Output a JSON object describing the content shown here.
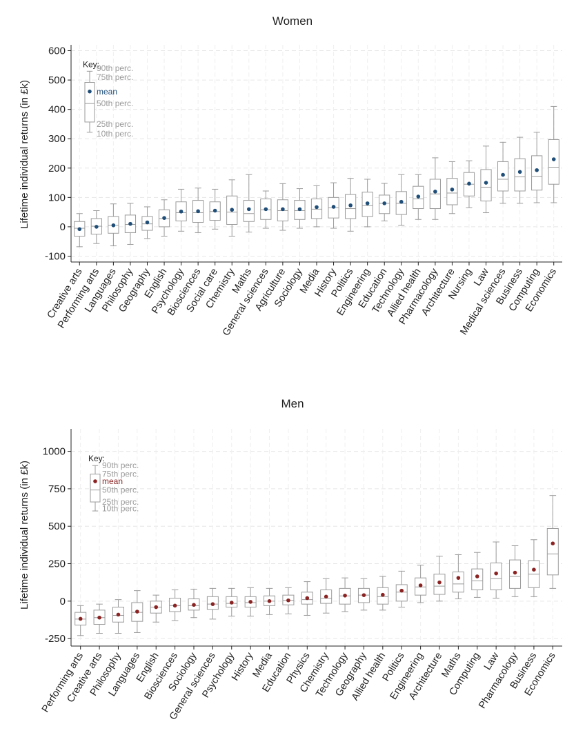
{
  "chart_data": [
    {
      "type": "box",
      "title": "Women",
      "ylabel": "Lifetime individual returns (in £k)",
      "xlabel": "",
      "ylim": [
        -120,
        620
      ],
      "yticks": [
        -100,
        0,
        100,
        200,
        300,
        400,
        500,
        600
      ],
      "grid": true,
      "mean_color": "#1f4e79",
      "key": {
        "title": "Key:",
        "labels": [
          "90th perc.",
          "75th perc.",
          "mean",
          "50th perc.",
          "25th perc.",
          "10th perc."
        ],
        "stats": {
          "p10": 322,
          "p25": 357,
          "median": 420,
          "p75": 492,
          "p90": 530,
          "mean": 461
        },
        "label_values": [
          540,
          510,
          460,
          420,
          350,
          317
        ]
      },
      "categories": [
        "Creative arts",
        "Performing arts",
        "Languages",
        "Philosophy",
        "Geography",
        "English",
        "Psychology",
        "Biosciences",
        "Social care",
        "Chemistry",
        "Maths",
        "General sciences",
        "Agriculture",
        "Sociology",
        "Media",
        "History",
        "Politics",
        "Engineering",
        "Education",
        "Technology",
        "Allied health",
        "Pharmacology",
        "Architecture",
        "Nursing",
        "Law",
        "Medical sciences",
        "Business",
        "Computing",
        "Economics"
      ],
      "series": [
        {
          "p10": -68,
          "p25": -32,
          "median": -5,
          "p75": 18,
          "p90": 45,
          "mean": -8
        },
        {
          "p10": -57,
          "p25": -25,
          "median": 2,
          "p75": 28,
          "p90": 55,
          "mean": 0
        },
        {
          "p10": -65,
          "p25": -22,
          "median": 5,
          "p75": 35,
          "p90": 78,
          "mean": 5
        },
        {
          "p10": -60,
          "p25": -20,
          "median": 8,
          "p75": 40,
          "p90": 80,
          "mean": 10
        },
        {
          "p10": -40,
          "p25": -12,
          "median": 10,
          "p75": 35,
          "p90": 68,
          "mean": 15
        },
        {
          "p10": -32,
          "p25": 0,
          "median": 28,
          "p75": 58,
          "p90": 92,
          "mean": 30
        },
        {
          "p10": -15,
          "p25": 20,
          "median": 48,
          "p75": 85,
          "p90": 128,
          "mean": 52
        },
        {
          "p10": -20,
          "p25": 15,
          "median": 48,
          "p75": 90,
          "p90": 132,
          "mean": 53
        },
        {
          "p10": -8,
          "p25": 22,
          "median": 52,
          "p75": 85,
          "p90": 128,
          "mean": 55
        },
        {
          "p10": -32,
          "p25": 8,
          "median": 50,
          "p75": 105,
          "p90": 160,
          "mean": 58
        },
        {
          "p10": -18,
          "p25": 18,
          "median": 45,
          "p75": 90,
          "p90": 178,
          "mean": 60
        },
        {
          "p10": -5,
          "p25": 25,
          "median": 58,
          "p75": 95,
          "p90": 122,
          "mean": 60
        },
        {
          "p10": -12,
          "p25": 20,
          "median": 55,
          "p75": 92,
          "p90": 147,
          "mean": 60
        },
        {
          "p10": -5,
          "p25": 25,
          "median": 55,
          "p75": 90,
          "p90": 130,
          "mean": 60
        },
        {
          "p10": 0,
          "p25": 28,
          "median": 60,
          "p75": 95,
          "p90": 140,
          "mean": 67
        },
        {
          "p10": -5,
          "p25": 30,
          "median": 65,
          "p75": 100,
          "p90": 150,
          "mean": 68
        },
        {
          "p10": -15,
          "p25": 28,
          "median": 62,
          "p75": 110,
          "p90": 165,
          "mean": 73
        },
        {
          "p10": 0,
          "p25": 35,
          "median": 72,
          "p75": 118,
          "p90": 162,
          "mean": 80
        },
        {
          "p10": 20,
          "p25": 45,
          "median": 80,
          "p75": 108,
          "p90": 148,
          "mean": 80
        },
        {
          "p10": 5,
          "p25": 42,
          "median": 80,
          "p75": 120,
          "p90": 178,
          "mean": 85
        },
        {
          "p10": 25,
          "p25": 62,
          "median": 95,
          "p75": 138,
          "p90": 178,
          "mean": 103
        },
        {
          "p10": 25,
          "p25": 62,
          "median": 112,
          "p75": 162,
          "p90": 235,
          "mean": 120
        },
        {
          "p10": 45,
          "p25": 75,
          "median": 115,
          "p75": 165,
          "p90": 222,
          "mean": 127
        },
        {
          "p10": 65,
          "p25": 105,
          "median": 145,
          "p75": 185,
          "p90": 225,
          "mean": 147
        },
        {
          "p10": 48,
          "p25": 88,
          "median": 135,
          "p75": 195,
          "p90": 275,
          "mean": 150
        },
        {
          "p10": 80,
          "p25": 122,
          "median": 162,
          "p75": 222,
          "p90": 288,
          "mean": 177
        },
        {
          "p10": 80,
          "p25": 122,
          "median": 170,
          "p75": 232,
          "p90": 305,
          "mean": 187
        },
        {
          "p10": 82,
          "p25": 125,
          "median": 172,
          "p75": 242,
          "p90": 322,
          "mean": 193
        },
        {
          "p10": 82,
          "p25": 145,
          "median": 203,
          "p75": 297,
          "p90": 410,
          "mean": 230
        }
      ]
    },
    {
      "type": "box",
      "title": "Men",
      "ylabel": "Lifetime individual returns (in £k)",
      "xlabel": "",
      "ylim": [
        -300,
        1150
      ],
      "yticks": [
        -250,
        0,
        250,
        500,
        750,
        1000
      ],
      "grid": true,
      "mean_color": "#8b2323",
      "key": {
        "title": "Key:",
        "labels": [
          "90th perc.",
          "75th perc.",
          "mean",
          "50th perc.",
          "25th perc.",
          "10th perc."
        ],
        "stats": {
          "p10": 602,
          "p25": 662,
          "median": 742,
          "p75": 848,
          "p90": 905,
          "mean": 800
        },
        "label_values": [
          905,
          848,
          800,
          742,
          662,
          618
        ]
      },
      "categories": [
        "Performing arts",
        "Creative arts",
        "Philosophy",
        "Languages",
        "English",
        "Biosciences",
        "Sociology",
        "General sciences",
        "Psychology",
        "History",
        "Media",
        "Education",
        "Physics",
        "Chemistry",
        "Technology",
        "Geography",
        "Allied health",
        "Politics",
        "Engineering",
        "Architecture",
        "Maths",
        "Computing",
        "Law",
        "Pharmacology",
        "Business",
        "Economics"
      ],
      "series": [
        {
          "p10": -230,
          "p25": -160,
          "median": -120,
          "p75": -75,
          "p90": -30,
          "mean": -118
        },
        {
          "p10": -215,
          "p25": -155,
          "median": -110,
          "p75": -60,
          "p90": -20,
          "mean": -110
        },
        {
          "p10": -215,
          "p25": -140,
          "median": -95,
          "p75": -40,
          "p90": 10,
          "mean": -90
        },
        {
          "p10": -210,
          "p25": -135,
          "median": -75,
          "p75": -10,
          "p90": 70,
          "mean": -70
        },
        {
          "p10": -140,
          "p25": -80,
          "median": -40,
          "p75": 0,
          "p90": 40,
          "mean": -40
        },
        {
          "p10": -130,
          "p25": -70,
          "median": -30,
          "p75": 20,
          "p90": 75,
          "mean": -30
        },
        {
          "p10": -110,
          "p25": -60,
          "median": -30,
          "p75": 15,
          "p90": 80,
          "mean": -25
        },
        {
          "p10": -120,
          "p25": -55,
          "median": -20,
          "p75": 30,
          "p90": 85,
          "mean": -20
        },
        {
          "p10": -100,
          "p25": -40,
          "median": -15,
          "p75": 30,
          "p90": 85,
          "mean": -10
        },
        {
          "p10": -100,
          "p25": -40,
          "median": -10,
          "p75": 30,
          "p90": 90,
          "mean": -5
        },
        {
          "p10": -90,
          "p25": -30,
          "median": 0,
          "p75": 35,
          "p90": 85,
          "mean": 0
        },
        {
          "p10": -85,
          "p25": -25,
          "median": 5,
          "p75": 40,
          "p90": 90,
          "mean": 5
        },
        {
          "p10": -95,
          "p25": -20,
          "median": 10,
          "p75": 60,
          "p90": 130,
          "mean": 20
        },
        {
          "p10": -80,
          "p25": -15,
          "median": 20,
          "p75": 75,
          "p90": 150,
          "mean": 30
        },
        {
          "p10": -70,
          "p25": -20,
          "median": 35,
          "p75": 85,
          "p90": 155,
          "mean": 37
        },
        {
          "p10": -60,
          "p25": -10,
          "median": 40,
          "p75": 85,
          "p90": 150,
          "mean": 40
        },
        {
          "p10": -60,
          "p25": -20,
          "median": 30,
          "p75": 90,
          "p90": 165,
          "mean": 42
        },
        {
          "p10": -40,
          "p25": 0,
          "median": 60,
          "p75": 110,
          "p90": 200,
          "mean": 70
        },
        {
          "p10": -10,
          "p25": 40,
          "median": 95,
          "p75": 155,
          "p90": 240,
          "mean": 105
        },
        {
          "p10": 0,
          "p25": 45,
          "median": 100,
          "p75": 180,
          "p90": 300,
          "mean": 125
        },
        {
          "p10": 15,
          "p25": 60,
          "median": 115,
          "p75": 195,
          "p90": 310,
          "mean": 155
        },
        {
          "p10": 25,
          "p25": 75,
          "median": 135,
          "p75": 215,
          "p90": 325,
          "mean": 165
        },
        {
          "p10": 20,
          "p25": 75,
          "median": 150,
          "p75": 255,
          "p90": 395,
          "mean": 185
        },
        {
          "p10": 30,
          "p25": 85,
          "median": 165,
          "p75": 275,
          "p90": 370,
          "mean": 190
        },
        {
          "p10": 30,
          "p25": 90,
          "median": 180,
          "p75": 270,
          "p90": 410,
          "mean": 210
        },
        {
          "p10": 85,
          "p25": 175,
          "median": 315,
          "p75": 485,
          "p90": 705,
          "mean": 385
        }
      ]
    }
  ]
}
